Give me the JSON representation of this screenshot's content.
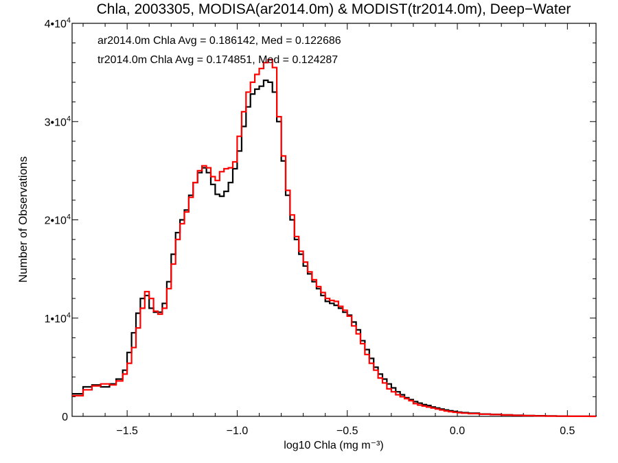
{
  "chart_data": {
    "type": "line",
    "title": "Chla, 2003305, MODISA(ar2014.0m) & MODIST(tr2014.0m), Deep−Water",
    "xlabel": "log10 Chla (mg m⁻³)",
    "ylabel": "Number of Observations",
    "xlim": [
      -1.75,
      0.63
    ],
    "ylim": [
      0,
      40000
    ],
    "x_ticks": [
      {
        "value": -1.5,
        "label": "−1.5"
      },
      {
        "value": -1.0,
        "label": "−1.0"
      },
      {
        "value": -0.5,
        "label": "−0.5"
      },
      {
        "value": 0.0,
        "label": "0.0"
      },
      {
        "value": 0.5,
        "label": "0.5"
      }
    ],
    "y_ticks": [
      {
        "value": 0,
        "mantissa": "0",
        "exp": ""
      },
      {
        "value": 10000,
        "mantissa": "1•10",
        "exp": "4"
      },
      {
        "value": 20000,
        "mantissa": "2•10",
        "exp": "4"
      },
      {
        "value": 30000,
        "mantissa": "3•10",
        "exp": "4"
      },
      {
        "value": 40000,
        "mantissa": "4•10",
        "exp": "4"
      }
    ],
    "grid": false,
    "annotations": [
      {
        "text": "ar2014.0m Chla Avg = 0.186142, Med = 0.122686",
        "color": "#000000"
      },
      {
        "text": "tr2014.0m Chla Avg = 0.174851, Med = 0.124287",
        "color": "#ff0000"
      }
    ],
    "series": [
      {
        "color": "#000000",
        "x": [
          -1.75,
          -1.7,
          -1.66,
          -1.62,
          -1.58,
          -1.55,
          -1.52,
          -1.5,
          -1.48,
          -1.46,
          -1.44,
          -1.42,
          -1.4,
          -1.38,
          -1.36,
          -1.34,
          -1.32,
          -1.3,
          -1.28,
          -1.26,
          -1.24,
          -1.22,
          -1.2,
          -1.18,
          -1.16,
          -1.14,
          -1.12,
          -1.1,
          -1.08,
          -1.06,
          -1.04,
          -1.02,
          -1.0,
          -0.98,
          -0.96,
          -0.94,
          -0.92,
          -0.9,
          -0.88,
          -0.86,
          -0.84,
          -0.82,
          -0.8,
          -0.78,
          -0.76,
          -0.74,
          -0.72,
          -0.7,
          -0.68,
          -0.66,
          -0.64,
          -0.62,
          -0.6,
          -0.58,
          -0.56,
          -0.54,
          -0.52,
          -0.5,
          -0.48,
          -0.46,
          -0.44,
          -0.42,
          -0.4,
          -0.38,
          -0.36,
          -0.34,
          -0.32,
          -0.3,
          -0.28,
          -0.26,
          -0.24,
          -0.22,
          -0.2,
          -0.18,
          -0.16,
          -0.14,
          -0.12,
          -0.1,
          -0.08,
          -0.06,
          -0.04,
          -0.02,
          0.0,
          0.02,
          0.05,
          0.1,
          0.15,
          0.2,
          0.25,
          0.3,
          0.35,
          0.4,
          0.45,
          0.5,
          0.55,
          0.6,
          0.63
        ],
        "y": [
          2300,
          3000,
          3200,
          3000,
          3300,
          3800,
          4700,
          6500,
          8500,
          10500,
          12000,
          12300,
          11000,
          10600,
          10600,
          11500,
          13700,
          16500,
          18700,
          20000,
          21000,
          22500,
          23800,
          24800,
          25300,
          24800,
          23600,
          22600,
          22400,
          22900,
          23800,
          25200,
          27000,
          29500,
          31500,
          32800,
          33300,
          33600,
          34200,
          34000,
          33000,
          30000,
          26000,
          22500,
          20000,
          18000,
          16500,
          15300,
          14500,
          13700,
          13000,
          12300,
          11700,
          11500,
          11300,
          11000,
          10600,
          10300,
          9600,
          8800,
          7700,
          6800,
          5900,
          5000,
          4300,
          3800,
          3300,
          2900,
          2500,
          2200,
          1900,
          1700,
          1500,
          1350,
          1200,
          1100,
          950,
          850,
          750,
          650,
          570,
          500,
          430,
          380,
          320,
          240,
          200,
          150,
          110,
          80,
          60,
          40,
          25,
          15,
          10,
          5,
          0
        ]
      },
      {
        "color": "#ff0000",
        "x": [
          -1.75,
          -1.7,
          -1.66,
          -1.62,
          -1.58,
          -1.55,
          -1.52,
          -1.5,
          -1.48,
          -1.46,
          -1.44,
          -1.42,
          -1.4,
          -1.38,
          -1.36,
          -1.34,
          -1.32,
          -1.3,
          -1.28,
          -1.26,
          -1.24,
          -1.22,
          -1.2,
          -1.18,
          -1.16,
          -1.14,
          -1.12,
          -1.1,
          -1.08,
          -1.06,
          -1.04,
          -1.02,
          -1.0,
          -0.98,
          -0.96,
          -0.94,
          -0.92,
          -0.9,
          -0.88,
          -0.86,
          -0.84,
          -0.82,
          -0.8,
          -0.78,
          -0.76,
          -0.74,
          -0.72,
          -0.7,
          -0.68,
          -0.66,
          -0.64,
          -0.62,
          -0.6,
          -0.58,
          -0.56,
          -0.54,
          -0.52,
          -0.5,
          -0.48,
          -0.46,
          -0.44,
          -0.42,
          -0.4,
          -0.38,
          -0.36,
          -0.34,
          -0.32,
          -0.3,
          -0.28,
          -0.26,
          -0.24,
          -0.22,
          -0.2,
          -0.18,
          -0.16,
          -0.14,
          -0.12,
          -0.1,
          -0.08,
          -0.06,
          -0.04,
          -0.02,
          0.0,
          0.02,
          0.05,
          0.1,
          0.15,
          0.2,
          0.25,
          0.3,
          0.35,
          0.4,
          0.45,
          0.5,
          0.55,
          0.6,
          0.63
        ],
        "y": [
          2100,
          2700,
          3100,
          3300,
          3200,
          3600,
          4300,
          5400,
          7000,
          9000,
          11000,
          12700,
          12000,
          10700,
          10400,
          11000,
          13000,
          15500,
          18000,
          19600,
          20800,
          22300,
          23800,
          25000,
          25500,
          25300,
          24400,
          24000,
          24900,
          25200,
          25300,
          25900,
          28500,
          31000,
          33000,
          34000,
          34800,
          35400,
          36000,
          36300,
          35500,
          30500,
          26500,
          23000,
          20500,
          18300,
          16800,
          15700,
          14700,
          13900,
          13200,
          12600,
          12000,
          11800,
          11700,
          11200,
          10800,
          10200,
          9200,
          8400,
          7400,
          6300,
          5400,
          4700,
          3900,
          3400,
          2800,
          2500,
          2200,
          2000,
          1800,
          1600,
          1300,
          1150,
          1050,
          950,
          850,
          750,
          650,
          550,
          480,
          420,
          380,
          330,
          280,
          220,
          180,
          140,
          100,
          70,
          50,
          30,
          20,
          10,
          5,
          3,
          0
        ]
      }
    ]
  }
}
